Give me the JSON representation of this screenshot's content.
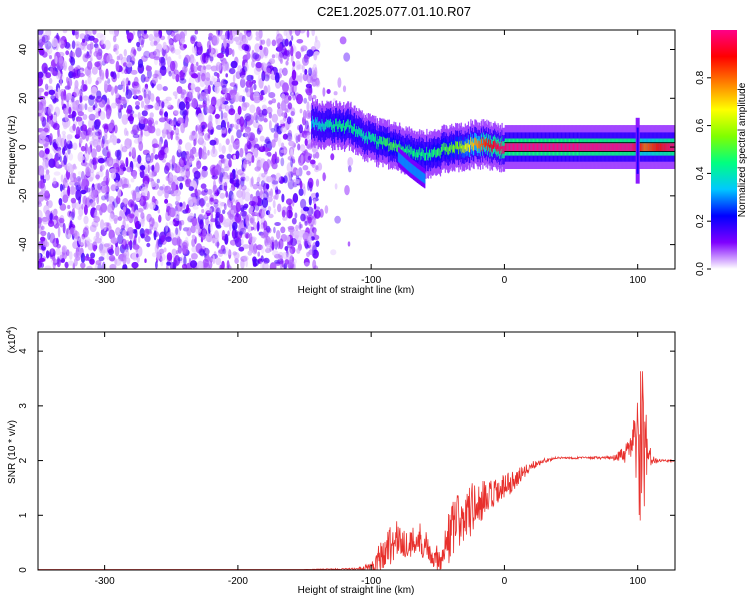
{
  "figure_title": "C2E1.2025.077.01.10.R07",
  "chart_data": [
    {
      "type": "heatmap",
      "title": "C2E1.2025.077.01.10.R07",
      "xlabel": "Height of straight line (km)",
      "ylabel": "Frequency (Hz)",
      "xlim": [
        -350,
        128
      ],
      "ylim": [
        -50,
        48
      ],
      "x_ticks": [
        -300,
        -200,
        -100,
        0,
        100
      ],
      "y_ticks": [
        -40,
        -20,
        0,
        20,
        40
      ],
      "colorbar": {
        "label": "Normalized spectral amplitude",
        "range": [
          0,
          1
        ],
        "ticks": [
          0.0,
          0.2,
          0.4,
          0.6,
          0.8
        ],
        "colormap": [
          "#ffffff",
          "#7f00ff",
          "#0000ff",
          "#00c8ff",
          "#00ff80",
          "#80ff00",
          "#ffff00",
          "#ff8000",
          "#ff0000",
          "#ff0088"
        ]
      },
      "noise_region_x": [
        -350,
        -140
      ],
      "ridge": {
        "x": [
          -145,
          -135,
          -125,
          -115,
          -105,
          -95,
          -85,
          -75,
          -65,
          -55,
          -45,
          -35,
          -25,
          -15,
          -5,
          5,
          20,
          40,
          60,
          80,
          95,
          100,
          105,
          128
        ],
        "y": [
          10,
          9,
          9,
          8,
          4,
          2,
          1,
          -1,
          -3,
          -3,
          -1,
          0,
          1,
          1,
          0,
          0,
          0,
          0,
          0,
          0,
          0,
          0,
          0,
          0
        ],
        "peak": [
          0.35,
          0.4,
          0.45,
          0.45,
          0.4,
          0.45,
          0.5,
          0.45,
          0.45,
          0.45,
          0.5,
          0.55,
          0.7,
          0.85,
          0.95,
          1.0,
          1.0,
          1.0,
          1.0,
          1.0,
          1.0,
          0.9,
          0.8,
          1.0
        ]
      },
      "branch": {
        "x": [
          -80,
          -72,
          -65,
          -60
        ],
        "y": [
          -4,
          -8,
          -11,
          -13
        ]
      },
      "spike": {
        "x": 100,
        "y_range": [
          -15,
          12
        ]
      }
    },
    {
      "type": "line",
      "xlabel": "Height of straight line (km)",
      "ylabel": "SNR (10 * v/v)",
      "y_scale_label": "(x10",
      "y_scale_exp": "4",
      "y_scale_close": ")",
      "xlim": [
        -350,
        128
      ],
      "ylim": [
        0,
        4.35
      ],
      "x_ticks": [
        -300,
        -200,
        -100,
        0,
        100
      ],
      "y_ticks": [
        0,
        1,
        2,
        3,
        4
      ],
      "series": [
        {
          "color": "#e8302c",
          "x": [
            -350,
            -150,
            -110,
            -100,
            -95,
            -90,
            -85,
            -80,
            -75,
            -70,
            -65,
            -60,
            -55,
            -50,
            -45,
            -40,
            -35,
            -30,
            -25,
            -20,
            -15,
            -10,
            -5,
            0,
            10,
            20,
            30,
            40,
            60,
            80,
            90,
            95,
            100,
            102,
            104,
            106,
            108,
            110,
            115,
            128
          ],
          "y": [
            0.01,
            0.01,
            0.02,
            0.05,
            0.2,
            0.35,
            0.5,
            0.55,
            0.5,
            0.45,
            0.6,
            0.5,
            0.3,
            0.2,
            0.4,
            0.7,
            0.85,
            1.0,
            1.1,
            1.2,
            1.25,
            1.3,
            1.4,
            1.5,
            1.7,
            1.9,
            2.0,
            2.05,
            2.05,
            2.05,
            2.1,
            2.2,
            2.4,
            2.0,
            2.5,
            1.6,
            2.2,
            2.0,
            2.0,
            2.0
          ],
          "jitter": [
            0,
            0,
            0.02,
            0.1,
            0.25,
            0.35,
            0.4,
            0.35,
            0.3,
            0.3,
            0.35,
            0.3,
            0.2,
            0.25,
            0.45,
            0.55,
            0.6,
            0.55,
            0.5,
            0.45,
            0.4,
            0.35,
            0.3,
            0.25,
            0.15,
            0.08,
            0.04,
            0.02,
            0.02,
            0.03,
            0.15,
            0.3,
            0.9,
            1.7,
            1.4,
            1.3,
            0.6,
            0.1,
            0.03,
            0.02
          ]
        }
      ]
    }
  ]
}
